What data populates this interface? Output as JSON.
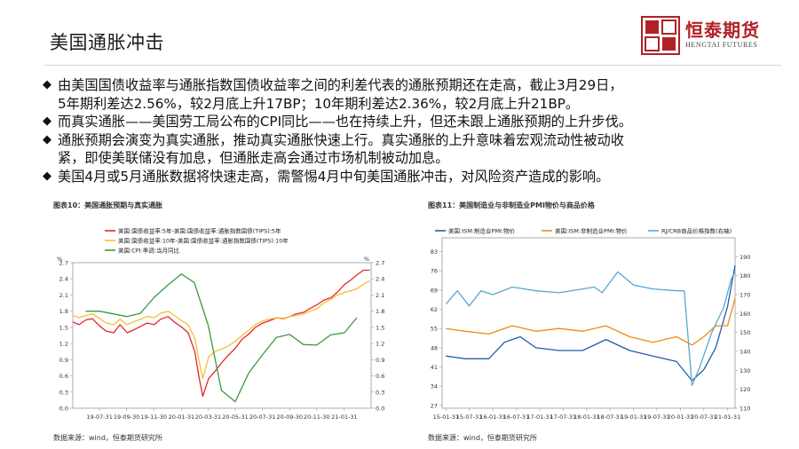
{
  "page": {
    "title": "美国通胀冲击"
  },
  "brand": {
    "logo_text": "證恒泰券",
    "logo_color": "#b02126",
    "name": "恒泰期货",
    "subtitle": "HENGTAI FUTURES"
  },
  "bullets": [
    {
      "mark": "◆",
      "lines": [
        "由美国国债收益率与通胀指数国债收益率之间的利差代表的通胀预期还在走高，截止3月29日，",
        "5年期利差达2.56%，较2月底上升17BP；10年期利差达2.36%，较2月底上升21BP。"
      ]
    },
    {
      "mark": "◆",
      "lines": [
        "而真实通胀——美国劳工局公布的CPI同比——也在持续上升，但还未跟上通胀预期的上升步伐。"
      ]
    },
    {
      "mark": "◆",
      "lines": [
        "通胀预期会演变为真实通胀，推动真实通胀快速上行。真实通胀的上升意味着宏观流动性被动收",
        "紧，即使美联储没有加息，但通胀走高会通过市场机制被动加息。"
      ]
    },
    {
      "mark": "◆",
      "lines": [
        "美国4月或5月通胀数据将快速走高，需警惕4月中旬美国通胀冲击，对风险资产造成的影响。"
      ]
    }
  ],
  "charts": {
    "left": {
      "caption": "图表10：美国通胀预期与真实通胀",
      "source": "数据来源：wind，恒泰期货研究所",
      "axis_unit": "%",
      "tick_color": "#333333"
    },
    "right": {
      "caption": "图表11：美国制造业与非制造业PMI物价与商品价格",
      "source": "数据来源：wind，恒泰期货研究所",
      "tick_color": "#333333"
    }
  },
  "chart_data": [
    {
      "type": "line",
      "title": "图表10：美国通胀预期与真实通胀",
      "x": [
        "19-07-31",
        "19-09-30",
        "19-11-30",
        "20-01-31",
        "20-03-31",
        "20-05-31",
        "20-07-31",
        "20-09-30",
        "20-11-30",
        "21-01-31"
      ],
      "xlim": [
        "2019-06-01",
        "2021-04-01"
      ],
      "ylim": [
        0.0,
        2.7
      ],
      "ticks_left": [
        0.0,
        0.3,
        0.6,
        0.9,
        1.2,
        1.5,
        1.8,
        2.1,
        2.4,
        2.7
      ],
      "ticks_right": [
        0.0,
        0.3,
        0.6,
        0.9,
        1.2,
        1.5,
        1.8,
        2.1,
        2.4,
        2.7
      ],
      "series": [
        {
          "name": "美国:国债收益率:5年-美国:国债收益率:通胀指数国债(TIPS):5年",
          "color": "#e8242a",
          "points": [
            [
              "2019-06-01",
              1.6
            ],
            [
              "2019-06-15",
              1.55
            ],
            [
              "2019-07-01",
              1.64
            ],
            [
              "2019-07-15",
              1.66
            ],
            [
              "2019-08-01",
              1.52
            ],
            [
              "2019-08-15",
              1.43
            ],
            [
              "2019-09-01",
              1.4
            ],
            [
              "2019-09-15",
              1.55
            ],
            [
              "2019-10-01",
              1.4
            ],
            [
              "2019-10-15",
              1.45
            ],
            [
              "2019-11-01",
              1.52
            ],
            [
              "2019-11-15",
              1.58
            ],
            [
              "2019-12-01",
              1.55
            ],
            [
              "2019-12-15",
              1.65
            ],
            [
              "2020-01-01",
              1.7
            ],
            [
              "2020-01-15",
              1.6
            ],
            [
              "2020-02-01",
              1.5
            ],
            [
              "2020-02-15",
              1.4
            ],
            [
              "2020-03-01",
              1.05
            ],
            [
              "2020-03-10",
              0.6
            ],
            [
              "2020-03-19",
              0.22
            ],
            [
              "2020-04-01",
              0.55
            ],
            [
              "2020-04-15",
              0.68
            ],
            [
              "2020-05-01",
              0.85
            ],
            [
              "2020-05-15",
              0.98
            ],
            [
              "2020-06-01",
              1.12
            ],
            [
              "2020-06-15",
              1.28
            ],
            [
              "2020-07-01",
              1.38
            ],
            [
              "2020-07-15",
              1.5
            ],
            [
              "2020-08-01",
              1.58
            ],
            [
              "2020-08-15",
              1.62
            ],
            [
              "2020-09-01",
              1.68
            ],
            [
              "2020-09-15",
              1.66
            ],
            [
              "2020-10-01",
              1.7
            ],
            [
              "2020-10-15",
              1.75
            ],
            [
              "2020-11-01",
              1.78
            ],
            [
              "2020-11-15",
              1.85
            ],
            [
              "2020-12-01",
              1.92
            ],
            [
              "2020-12-15",
              2.0
            ],
            [
              "2021-01-01",
              2.05
            ],
            [
              "2021-01-15",
              2.15
            ],
            [
              "2021-02-01",
              2.3
            ],
            [
              "2021-02-15",
              2.38
            ],
            [
              "2021-03-01",
              2.48
            ],
            [
              "2021-03-15",
              2.56
            ],
            [
              "2021-03-29",
              2.56
            ]
          ]
        },
        {
          "name": "美国:国债收益率:10年-美国:国债收益率:通胀指数国债(TIPS):10年",
          "color": "#f2c12e",
          "points": [
            [
              "2019-06-01",
              1.72
            ],
            [
              "2019-06-15",
              1.68
            ],
            [
              "2019-07-01",
              1.72
            ],
            [
              "2019-07-15",
              1.75
            ],
            [
              "2019-08-01",
              1.66
            ],
            [
              "2019-08-15",
              1.58
            ],
            [
              "2019-09-01",
              1.55
            ],
            [
              "2019-09-15",
              1.65
            ],
            [
              "2019-10-01",
              1.55
            ],
            [
              "2019-10-15",
              1.6
            ],
            [
              "2019-11-01",
              1.65
            ],
            [
              "2019-11-15",
              1.7
            ],
            [
              "2019-12-01",
              1.68
            ],
            [
              "2019-12-15",
              1.76
            ],
            [
              "2020-01-01",
              1.8
            ],
            [
              "2020-01-15",
              1.72
            ],
            [
              "2020-02-01",
              1.62
            ],
            [
              "2020-02-15",
              1.55
            ],
            [
              "2020-03-01",
              1.3
            ],
            [
              "2020-03-10",
              0.9
            ],
            [
              "2020-03-19",
              0.55
            ],
            [
              "2020-04-01",
              0.95
            ],
            [
              "2020-04-15",
              1.05
            ],
            [
              "2020-05-01",
              1.1
            ],
            [
              "2020-05-15",
              1.15
            ],
            [
              "2020-06-01",
              1.25
            ],
            [
              "2020-06-15",
              1.35
            ],
            [
              "2020-07-01",
              1.45
            ],
            [
              "2020-07-15",
              1.55
            ],
            [
              "2020-08-01",
              1.62
            ],
            [
              "2020-08-15",
              1.65
            ],
            [
              "2020-09-01",
              1.68
            ],
            [
              "2020-09-15",
              1.65
            ],
            [
              "2020-10-01",
              1.7
            ],
            [
              "2020-10-15",
              1.72
            ],
            [
              "2020-11-01",
              1.75
            ],
            [
              "2020-11-15",
              1.8
            ],
            [
              "2020-12-01",
              1.85
            ],
            [
              "2020-12-15",
              1.95
            ],
            [
              "2021-01-01",
              2.02
            ],
            [
              "2021-01-15",
              2.1
            ],
            [
              "2021-02-01",
              2.15
            ],
            [
              "2021-02-15",
              2.18
            ],
            [
              "2021-03-01",
              2.22
            ],
            [
              "2021-03-15",
              2.3
            ],
            [
              "2021-03-29",
              2.36
            ]
          ]
        },
        {
          "name": "美国:CPI:季调:当月同比",
          "color": "#3e9a3e",
          "points": [
            [
              "2019-06-30",
              1.8
            ],
            [
              "2019-07-31",
              1.8
            ],
            [
              "2019-08-31",
              1.75
            ],
            [
              "2019-09-30",
              1.7
            ],
            [
              "2019-10-31",
              1.76
            ],
            [
              "2019-11-30",
              2.05
            ],
            [
              "2019-12-31",
              2.28
            ],
            [
              "2020-01-31",
              2.49
            ],
            [
              "2020-02-29",
              2.33
            ],
            [
              "2020-03-31",
              1.54
            ],
            [
              "2020-04-30",
              0.33
            ],
            [
              "2020-05-31",
              0.12
            ],
            [
              "2020-06-30",
              0.65
            ],
            [
              "2020-07-31",
              0.99
            ],
            [
              "2020-08-31",
              1.31
            ],
            [
              "2020-09-30",
              1.37
            ],
            [
              "2020-10-31",
              1.18
            ],
            [
              "2020-11-30",
              1.17
            ],
            [
              "2020-12-31",
              1.36
            ],
            [
              "2021-01-31",
              1.4
            ],
            [
              "2021-02-28",
              1.68
            ]
          ]
        }
      ]
    },
    {
      "type": "line",
      "title": "图表11：美国制造业与非制造业PMI物价与商品价格",
      "x": [
        "15-01-31",
        "15-07-31",
        "16-01-31",
        "16-07-31",
        "17-01-31",
        "17-07-31",
        "18-01-31",
        "18-07-31",
        "19-01-31",
        "19-07-31",
        "20-01-31",
        "20-07-31",
        "21-01-31"
      ],
      "xlim": [
        "2015-01-01",
        "2021-03-31"
      ],
      "ylim": [
        26,
        88
      ],
      "ylim_right": [
        110,
        200
      ],
      "ticks_left": [
        27,
        34,
        41,
        48,
        55,
        62,
        69,
        76,
        83
      ],
      "ticks_right": [
        110,
        120,
        130,
        140,
        150,
        160,
        170,
        180,
        190
      ],
      "series": [
        {
          "name": "美国:ISM:制造业PMI:物价",
          "color": "#1f5fa6",
          "axis": "left",
          "points": [
            [
              "2015-01-31",
              45
            ],
            [
              "2015-06-30",
              44
            ],
            [
              "2015-12-31",
              44
            ],
            [
              "2016-04-30",
              50
            ],
            [
              "2016-08-31",
              52
            ],
            [
              "2016-12-31",
              48
            ],
            [
              "2017-06-30",
              47
            ],
            [
              "2017-12-31",
              47
            ],
            [
              "2018-06-30",
              51
            ],
            [
              "2018-12-31",
              47
            ],
            [
              "2019-06-30",
              45
            ],
            [
              "2019-12-31",
              43
            ],
            [
              "2020-04-30",
              36
            ],
            [
              "2020-07-31",
              40
            ],
            [
              "2020-10-31",
              48
            ],
            [
              "2021-01-31",
              63
            ],
            [
              "2021-03-31",
              78
            ]
          ]
        },
        {
          "name": "美国:ISM:非制造业PMI:物价",
          "color": "#ef8a17",
          "axis": "left",
          "points": [
            [
              "2015-01-31",
              55
            ],
            [
              "2015-06-30",
              54
            ],
            [
              "2015-12-31",
              53
            ],
            [
              "2016-06-30",
              56
            ],
            [
              "2016-12-31",
              54
            ],
            [
              "2017-06-30",
              55
            ],
            [
              "2017-12-31",
              54
            ],
            [
              "2018-06-30",
              56
            ],
            [
              "2018-12-31",
              52
            ],
            [
              "2019-06-30",
              50
            ],
            [
              "2019-12-31",
              52
            ],
            [
              "2020-04-30",
              49
            ],
            [
              "2020-07-31",
              52
            ],
            [
              "2020-10-31",
              56
            ],
            [
              "2021-01-31",
              56
            ],
            [
              "2021-03-31",
              66
            ]
          ]
        },
        {
          "name": "RJ/CRB商品价格指数(右轴)",
          "color": "#5aa7d4",
          "axis": "right",
          "points": [
            [
              "2015-01-31",
              165
            ],
            [
              "2015-04-30",
              172
            ],
            [
              "2015-07-31",
              164
            ],
            [
              "2015-10-31",
              172
            ],
            [
              "2016-01-31",
              170
            ],
            [
              "2016-06-30",
              174
            ],
            [
              "2016-12-31",
              172
            ],
            [
              "2017-06-30",
              171
            ],
            [
              "2017-12-31",
              173
            ],
            [
              "2018-03-31",
              174
            ],
            [
              "2018-05-31",
              171
            ],
            [
              "2018-09-30",
              182
            ],
            [
              "2019-01-31",
              175
            ],
            [
              "2019-06-30",
              173
            ],
            [
              "2019-12-31",
              172
            ],
            [
              "2020-02-29",
              172
            ],
            [
              "2020-04-30",
              122
            ],
            [
              "2020-06-30",
              132
            ],
            [
              "2020-09-30",
              150
            ],
            [
              "2020-12-31",
              163
            ],
            [
              "2021-02-28",
              178
            ],
            [
              "2021-03-31",
              182
            ]
          ]
        }
      ]
    }
  ]
}
